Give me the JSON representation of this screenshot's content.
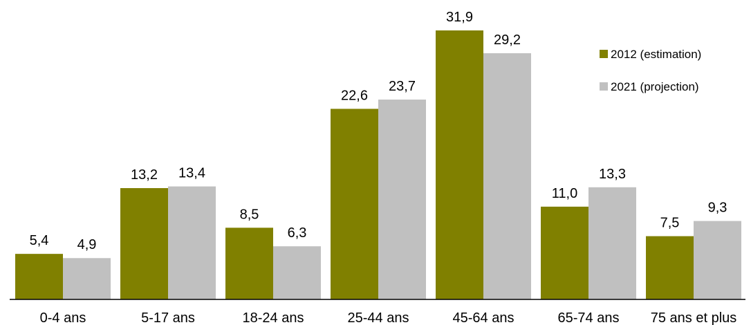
{
  "chart_data": {
    "type": "bar",
    "title": "",
    "xlabel": "",
    "ylabel": "",
    "ylim": [
      0,
      33
    ],
    "grid": false,
    "legend_position": "right",
    "categories": [
      "0-4 ans",
      "5-17 ans",
      "18-24 ans",
      "25-44 ans",
      "45-64 ans",
      "65-74 ans",
      "75 ans et plus"
    ],
    "series": [
      {
        "name": "2012 (estimation)",
        "color": "#808000",
        "values": [
          5.4,
          13.2,
          8.5,
          22.6,
          31.9,
          11.0,
          7.5
        ],
        "labels": [
          "5,4",
          "13,2",
          "8,5",
          "22,6",
          "31,9",
          "11,0",
          "7,5"
        ]
      },
      {
        "name": "2021 (projection)",
        "color": "#c0c0c0",
        "values": [
          4.9,
          13.4,
          6.3,
          23.7,
          29.2,
          13.3,
          9.3
        ],
        "labels": [
          "4,9",
          "13,4",
          "6,3",
          "23,7",
          "29,2",
          "13,3",
          "9,3"
        ]
      }
    ]
  }
}
